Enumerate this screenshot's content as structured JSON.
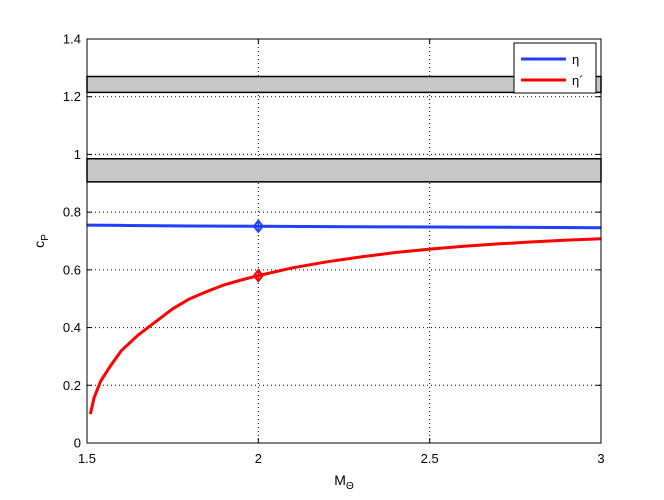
{
  "chart_data": {
    "type": "line",
    "xlabel": "M",
    "xlabel_sub": "Θ",
    "ylabel": "c",
    "ylabel_sub": "P",
    "xlim": [
      1.5,
      3
    ],
    "ylim": [
      0,
      1.4
    ],
    "xticks": [
      1.5,
      2,
      2.5,
      3
    ],
    "xtick_labels": [
      "1.5",
      "2",
      "2.5",
      "3"
    ],
    "yticks": [
      0,
      0.2,
      0.4,
      0.6,
      0.8,
      1,
      1.2,
      1.4
    ],
    "ytick_labels": [
      "0",
      "0.2",
      "0.4",
      "0.6",
      "0.8",
      "1",
      "1.2",
      "1.4"
    ],
    "grid": true,
    "legend_position": "top-right",
    "series": [
      {
        "name": "η",
        "color": "#1f3fff",
        "x": [
          1.5,
          1.6,
          1.8,
          2.0,
          2.2,
          2.4,
          2.6,
          2.8,
          3.0
        ],
        "y": [
          0.755,
          0.754,
          0.752,
          0.751,
          0.75,
          0.749,
          0.748,
          0.747,
          0.746
        ]
      },
      {
        "name": "η´",
        "color": "#ff0000",
        "x": [
          1.51,
          1.52,
          1.54,
          1.57,
          1.6,
          1.65,
          1.7,
          1.75,
          1.8,
          1.85,
          1.9,
          1.95,
          2.0,
          2.1,
          2.2,
          2.3,
          2.4,
          2.5,
          2.6,
          2.7,
          2.8,
          2.9,
          3.0
        ],
        "y": [
          0.1,
          0.155,
          0.215,
          0.27,
          0.32,
          0.375,
          0.42,
          0.465,
          0.5,
          0.525,
          0.548,
          0.565,
          0.58,
          0.607,
          0.628,
          0.645,
          0.66,
          0.672,
          0.682,
          0.69,
          0.697,
          0.703,
          0.708
        ]
      }
    ],
    "markers": [
      {
        "series": "η",
        "x": 2,
        "y": 0.751,
        "color": "#1f3fff",
        "shape": "diamond"
      },
      {
        "series": "η´",
        "x": 2,
        "y": 0.58,
        "color": "#ff0000",
        "shape": "diamond"
      }
    ],
    "bands": [
      {
        "y0": 1.215,
        "y1": 1.27,
        "color": "#c8c8c8"
      },
      {
        "y0": 0.905,
        "y1": 0.985,
        "color": "#c8c8c8"
      }
    ]
  }
}
